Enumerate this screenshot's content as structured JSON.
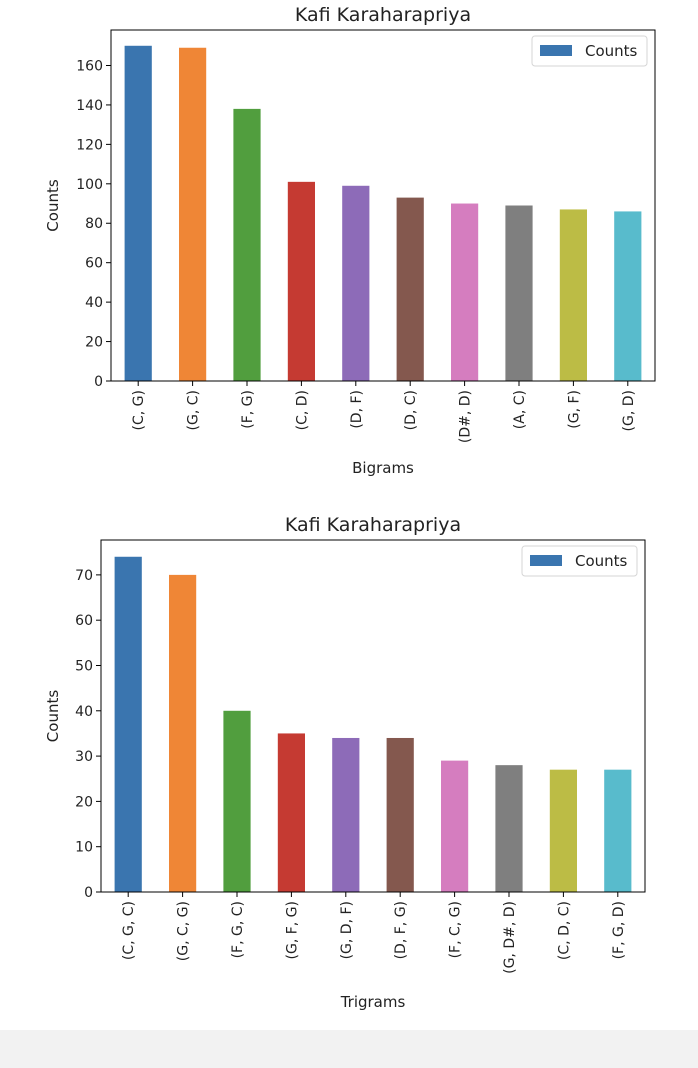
{
  "chart_data": [
    {
      "type": "bar",
      "title": "Kafi Karaharapriya",
      "xlabel": "Bigrams",
      "ylabel": "Counts",
      "legend": {
        "entries": [
          "Counts"
        ],
        "placement": "top-right"
      },
      "categories": [
        "(C, G)",
        "(G, C)",
        "(F, G)",
        "(C, D)",
        "(D, F)",
        "(D, C)",
        "(D#, D)",
        "(A, C)",
        "(G, F)",
        "(G, D)"
      ],
      "values": [
        170,
        169,
        138,
        101,
        99,
        93,
        90,
        89,
        87,
        86
      ],
      "ylim": [
        0,
        178
      ],
      "yticks": [
        0,
        20,
        40,
        60,
        80,
        100,
        120,
        140,
        160
      ],
      "grid": false,
      "colors": [
        "#3a75af",
        "#ef8636",
        "#519e3e",
        "#c53a32",
        "#8d6bb8",
        "#84584e",
        "#d57dbf",
        "#7f7f7f",
        "#bcbc45",
        "#58bbcc"
      ]
    },
    {
      "type": "bar",
      "title": "Kafi Karaharapriya",
      "xlabel": "Trigrams",
      "ylabel": "Counts",
      "legend": {
        "entries": [
          "Counts"
        ],
        "placement": "top-right"
      },
      "categories": [
        "(C, G, C)",
        "(G, C, G)",
        "(F, G, C)",
        "(G, F, G)",
        "(G, D, F)",
        "(D, F, G)",
        "(F, C, G)",
        "(G, D#, D)",
        "(C, D, C)",
        "(F, G, D)"
      ],
      "values": [
        74,
        70,
        40,
        35,
        34,
        34,
        29,
        28,
        27,
        27
      ],
      "ylim": [
        0,
        77.7
      ],
      "yticks": [
        0,
        10,
        20,
        30,
        40,
        50,
        60,
        70
      ],
      "grid": false,
      "colors": [
        "#3a75af",
        "#ef8636",
        "#519e3e",
        "#c53a32",
        "#8d6bb8",
        "#84584e",
        "#d57dbf",
        "#7f7f7f",
        "#bcbc45",
        "#58bbcc"
      ]
    }
  ]
}
